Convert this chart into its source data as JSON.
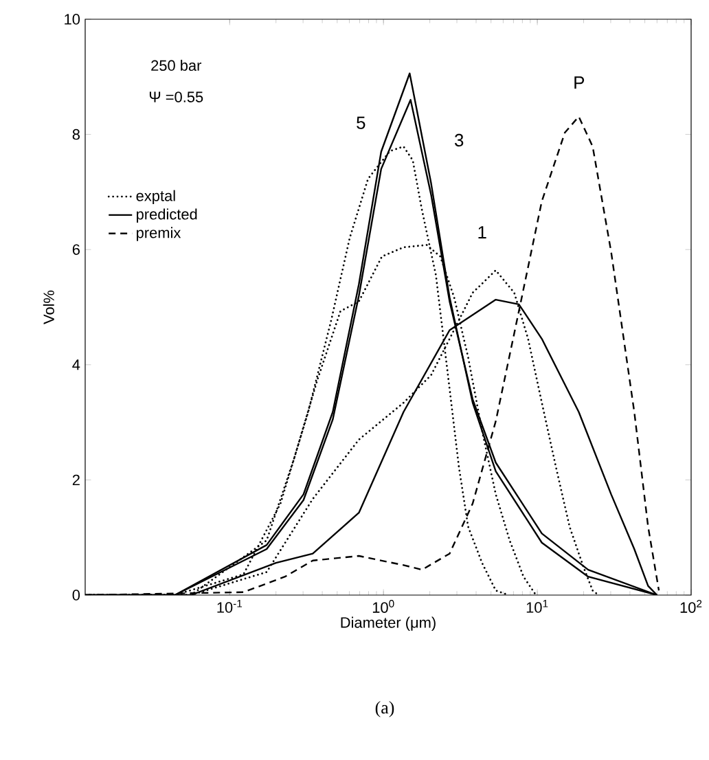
{
  "chart_data": {
    "type": "line",
    "xlabel": "Diameter (μm)",
    "ylabel": "Vol%",
    "log": "x",
    "xlim": [
      0.0115,
      100
    ],
    "ylim": [
      0,
      10
    ],
    "xticks": [
      {
        "value": 0.1,
        "label": "10$^{-1}$"
      },
      {
        "value": 1,
        "label": "10$^{0}$"
      },
      {
        "value": 10,
        "label": "10$^{1}$"
      },
      {
        "value": 100,
        "label": "10$^{2}$"
      }
    ],
    "yticks": [
      0,
      2,
      4,
      6,
      8,
      10
    ],
    "grid": false,
    "legend": "left",
    "marker": "none",
    "series": [
      {
        "name": "exptal",
        "color": "#000000",
        "line_style": "dotted",
        "x": [
          0.0115,
          0.044,
          0.123,
          0.214,
          0.324,
          0.457,
          0.603,
          0.794,
          1.1,
          1.35,
          1.55,
          1.78,
          2.19,
          2.69,
          3.09,
          3.55,
          4.37,
          5.37,
          6.5
        ],
        "values": [
          0,
          0,
          0.36,
          1.59,
          3.18,
          4.77,
          6.2,
          7.23,
          7.71,
          7.79,
          7.55,
          6.68,
          5.56,
          3.58,
          2.23,
          1.19,
          0.56,
          0.08,
          0
        ]
      },
      {
        "name": "predicted",
        "color": "#000000",
        "line_style": "solid",
        "x": [
          0.0115,
          0.044,
          0.174,
          0.302,
          0.468,
          0.692,
          0.966,
          1.48,
          2.04,
          2.69,
          3.8,
          5.37,
          10.7,
          21.4,
          60
        ],
        "values": [
          0,
          0,
          0.87,
          1.75,
          3.18,
          5.4,
          7.7,
          9.06,
          7.15,
          5.17,
          3.34,
          2.15,
          0.91,
          0.32,
          0
        ]
      },
      {
        "name": "premix",
        "color": "#000000",
        "line_style": "dashed",
        "x": [
          0.0115,
          0.123,
          0.229,
          0.347,
          0.692,
          1.35,
          1.78,
          2.69,
          3.8,
          5.37,
          7.59,
          10.7,
          15.1,
          18.6,
          22.9,
          30.2,
          42.7,
          52.5,
          61.7
        ],
        "values": [
          0,
          0.05,
          0.32,
          0.6,
          0.68,
          0.52,
          0.44,
          0.72,
          1.59,
          3.02,
          4.93,
          6.84,
          8.03,
          8.31,
          7.79,
          5.96,
          3.18,
          1.19,
          0.08
        ]
      },
      {
        "color": "#000000",
        "line_style": "dotted",
        "x": [
          0.0115,
          0.056,
          0.174,
          0.263,
          0.372,
          0.525,
          0.692,
          0.977,
          1.35,
          1.91,
          2.34,
          2.88,
          3.55,
          4.37,
          5.37,
          6.61,
          8.13,
          9.8
        ],
        "values": [
          0,
          0,
          0.95,
          2.38,
          3.74,
          4.93,
          5.1,
          5.88,
          6.04,
          6.08,
          5.88,
          5.17,
          4.13,
          2.86,
          1.75,
          0.95,
          0.32,
          0
        ]
      },
      {
        "color": "#000000",
        "line_style": "dotted",
        "x": [
          0.0115,
          0.056,
          0.174,
          0.347,
          0.692,
          1.35,
          2.04,
          2.69,
          3.8,
          5.37,
          7.08,
          8.71,
          10.7,
          13.2,
          16.2,
          20,
          22.9,
          25
        ],
        "values": [
          0,
          0,
          0.4,
          1.67,
          2.7,
          3.34,
          3.82,
          4.45,
          5.25,
          5.64,
          5.25,
          4.45,
          3.34,
          2.23,
          1.19,
          0.48,
          0.08,
          0
        ]
      },
      {
        "color": "#000000",
        "line_style": "solid",
        "x": [
          0.0115,
          0.044,
          0.174,
          0.302,
          0.468,
          0.692,
          0.966,
          1.5,
          2.04,
          2.69,
          3.8,
          5.37,
          10.7,
          21.4,
          60
        ],
        "values": [
          0,
          0,
          0.8,
          1.65,
          3.05,
          5.2,
          7.4,
          8.6,
          6.95,
          5.1,
          3.4,
          2.3,
          1.07,
          0.44,
          0
        ]
      },
      {
        "color": "#000000",
        "line_style": "solid",
        "x": [
          0.0115,
          0.056,
          0.2,
          0.347,
          0.692,
          1.35,
          2.69,
          5.37,
          7.59,
          10.7,
          18.6,
          30.2,
          42.7,
          52.5,
          60
        ],
        "values": [
          0,
          0,
          0.56,
          0.72,
          1.43,
          3.18,
          4.6,
          5.13,
          5.05,
          4.45,
          3.18,
          1.75,
          0.8,
          0.16,
          0
        ]
      }
    ],
    "annotations": [
      "250 bar",
      "Ψ =0.55",
      "5",
      "3",
      "1",
      "P",
      "(a)"
    ]
  }
}
